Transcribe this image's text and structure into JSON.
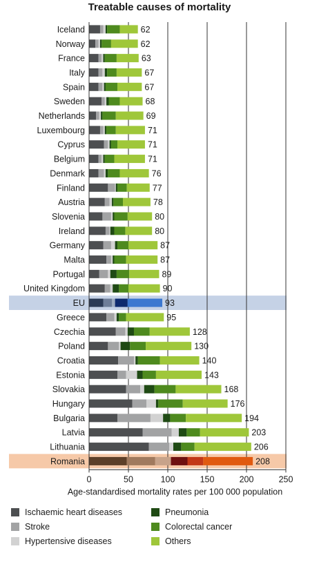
{
  "chart_data": {
    "type": "bar",
    "stacked": true,
    "orientation": "horizontal",
    "title": "Treatable causes of mortality",
    "xlabel": "Age-standardised mortality rates per 100 000 population",
    "xlim": [
      0,
      250
    ],
    "xticks": [
      0,
      50,
      100,
      150,
      200,
      250
    ],
    "grid": "vertical",
    "legend_position": "bottom",
    "categories": [
      "Iceland",
      "Norway",
      "France",
      "Italy",
      "Spain",
      "Sweden",
      "Netherlands",
      "Luxembourg",
      "Cyprus",
      "Belgium",
      "Denmark",
      "Finland",
      "Austria",
      "Slovenia",
      "Ireland",
      "Germany",
      "Malta",
      "Portugal",
      "United Kingdom",
      "EU",
      "Greece",
      "Czechia",
      "Poland",
      "Croatia",
      "Estonia",
      "Slovakia",
      "Hungary",
      "Bulgaria",
      "Latvia",
      "Lithuania",
      "Romania"
    ],
    "totals": [
      62,
      62,
      63,
      67,
      67,
      68,
      69,
      71,
      71,
      71,
      76,
      77,
      78,
      80,
      80,
      87,
      87,
      89,
      90,
      93,
      95,
      128,
      130,
      140,
      143,
      168,
      176,
      194,
      203,
      206,
      208
    ],
    "highlights": {
      "EU": "#c5d2e6",
      "Romania": "#f6c9a8"
    },
    "series": [
      {
        "name": "Ischaemic heart diseases",
        "color": "#4d4f51",
        "eu_color": "#2a3a55",
        "romania_color": "#5c3f28",
        "values": [
          14,
          8,
          12,
          12,
          12,
          16,
          9,
          14,
          19,
          12,
          12,
          24,
          20,
          17,
          21,
          18,
          22,
          13,
          20,
          18,
          22,
          34,
          24,
          37,
          36,
          47,
          55,
          36,
          68,
          76,
          48
        ]
      },
      {
        "name": "Stroke",
        "color": "#a2a3a4",
        "eu_color": "#6e7e99",
        "romania_color": "#a07a5e",
        "values": [
          4,
          4,
          4,
          5,
          5,
          4,
          4,
          4,
          5,
          4,
          7,
          9,
          6,
          11,
          5,
          10,
          6,
          11,
          7,
          11,
          10,
          12,
          14,
          20,
          11,
          18,
          18,
          42,
          37,
          26,
          36
        ]
      },
      {
        "name": "Hypertensive diseases",
        "color": "#d2d2d2",
        "eu_color": "#9caabf",
        "romania_color": "#c7a38a",
        "values": [
          3,
          2,
          2,
          3,
          2,
          2,
          2,
          2,
          2,
          2,
          2,
          1,
          3,
          2,
          1,
          5,
          2,
          3,
          3,
          4,
          3,
          3,
          2,
          2,
          14,
          5,
          12,
          16,
          9,
          5,
          20
        ]
      },
      {
        "name": "Pneumonia",
        "color": "#1f4a14",
        "eu_color": "#0e2a6e",
        "romania_color": "#6e1010",
        "values": [
          2,
          2,
          2,
          3,
          2,
          3,
          2,
          2,
          2,
          2,
          3,
          2,
          2,
          2,
          5,
          3,
          2,
          8,
          8,
          16,
          3,
          8,
          12,
          3,
          7,
          13,
          3,
          9,
          10,
          10,
          21
        ]
      },
      {
        "name": "Colorectal cancer",
        "color": "#4e8a1e",
        "eu_color": "#2a5aa8",
        "romania_color": "#c23818",
        "values": [
          16,
          12,
          15,
          12,
          15,
          14,
          17,
          12,
          8,
          12,
          15,
          12,
          12,
          17,
          14,
          14,
          15,
          16,
          12,
          0,
          9,
          20,
          20,
          28,
          17,
          27,
          31,
          20,
          17,
          17,
          20
        ]
      },
      {
        "name": "Others",
        "color": "#9fc73a",
        "eu_color": "#3c78d0",
        "romania_color": "#e05a10",
        "values": [
          23,
          34,
          28,
          32,
          31,
          29,
          35,
          37,
          35,
          39,
          37,
          29,
          35,
          31,
          34,
          37,
          40,
          38,
          40,
          44,
          48,
          51,
          58,
          50,
          58,
          58,
          57,
          71,
          62,
          72,
          63
        ]
      }
    ]
  }
}
